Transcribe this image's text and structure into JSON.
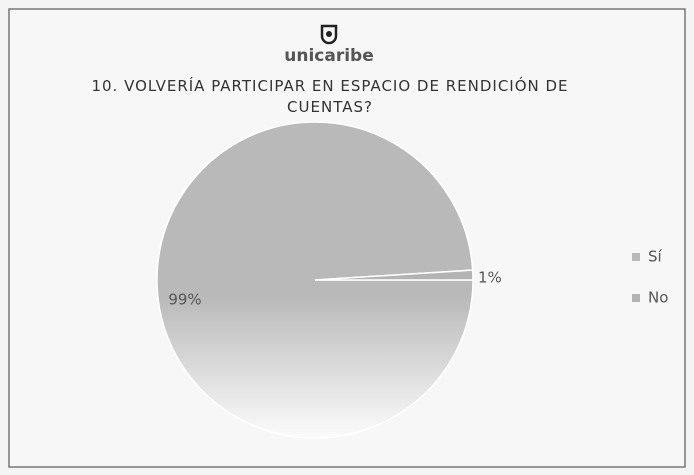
{
  "chart_data": {
    "type": "pie",
    "logo_text": "unicaribe",
    "title": "10. VOLVERÍA PARTICIPAR EN ESPACIO DE RENDICIÓN DE CUENTAS?",
    "categories": [
      "Sí",
      "No"
    ],
    "values": [
      99,
      1
    ],
    "value_labels": [
      "99%",
      "1%"
    ],
    "colors": [
      "#b9b9b9",
      "#b3b3b3"
    ],
    "legend": "right"
  }
}
